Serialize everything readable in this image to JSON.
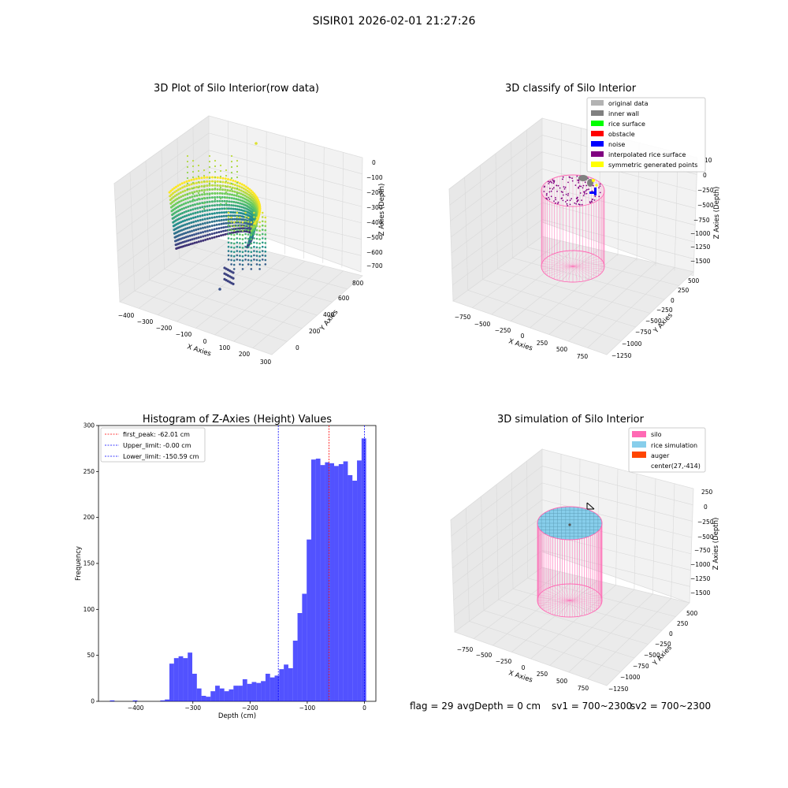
{
  "figure_title": "SISIR01 2026-02-01 21:27:26",
  "status": {
    "flag": "flag = 29",
    "avg_depth": "avgDepth = 0 cm",
    "sv1": "sv1 = 700~2300",
    "sv2": "sv2 = 700~2300"
  },
  "colors": {
    "silo": "#ff69b4",
    "rice_simulation": "#87ceeb",
    "auger": "#ff4500",
    "histogram_bar": "#0000ff",
    "first_peak_line": "#ff0000",
    "upper_limit_line": "#0000ff",
    "lower_limit_line": "#0000ff"
  },
  "chart_data": [
    {
      "type": "scatter3d",
      "title": "3D Plot of Silo Interior(row data)",
      "xlabel": "X Axies",
      "ylabel": "Y Axies",
      "zlabel": "Z Axies (Depth)",
      "x_ticks": [
        "−400",
        "−300",
        "−200",
        "−100",
        "0",
        "100",
        "200",
        "300"
      ],
      "y_ticks": [
        "0",
        "200",
        "400",
        "600",
        "800"
      ],
      "z_ticks": [
        "0",
        "−100",
        "−200",
        "−300",
        "−400",
        "−500",
        "−600",
        "−700"
      ],
      "xlim": [
        -450,
        320
      ],
      "ylim": [
        -100,
        900
      ],
      "zlim": [
        -720,
        20
      ],
      "colormap": "viridis"
    },
    {
      "type": "scatter3d",
      "title": "3D classify of Silo Interior",
      "xlabel": "X Axies",
      "ylabel": "Y Axies",
      "zlabel": "Z Axies (Depth)",
      "x_ticks": [
        "−750",
        "−500",
        "−250",
        "0",
        "250",
        "500",
        "750"
      ],
      "y_ticks": [
        "500",
        "250",
        "0",
        "−250",
        "−500",
        "−750",
        "−1000",
        "−1250"
      ],
      "z_ticks": [
        "0",
        "−250",
        "−500",
        "−750",
        "−1000",
        "−1250",
        "−1500"
      ],
      "z_extra_tick": "10",
      "legend": [
        {
          "label": "original data",
          "color": "#b3b3b3"
        },
        {
          "label": "inner wall",
          "color": "#808080"
        },
        {
          "label": "rice surface",
          "color": "#00ff00"
        },
        {
          "label": "obstacle",
          "color": "#ff0000"
        },
        {
          "label": "noise",
          "color": "#0000ff"
        },
        {
          "label": "interpolated rice surface",
          "color": "#800080"
        },
        {
          "label": "symmetric generated points",
          "color": "#ffff00"
        }
      ],
      "legend_loc": "upper right"
    },
    {
      "type": "bar",
      "title": "Histogram of Z-Axies (Height) Values",
      "xlabel": "Depth (cm)",
      "ylabel": "Frequency",
      "xlim": [
        -465,
        20
      ],
      "ylim": [
        0,
        300
      ],
      "x_ticks": [
        -400,
        -300,
        -200,
        -100,
        0
      ],
      "x_tick_labels": [
        "−400",
        "−300",
        "−200",
        "−100",
        "0"
      ],
      "y_ticks": [
        0,
        50,
        100,
        150,
        200,
        250,
        300
      ],
      "bins": [
        [
          -445,
          -437,
          1
        ],
        [
          -405,
          -397,
          1
        ],
        [
          -357,
          -349,
          1
        ],
        [
          -349,
          -341,
          2
        ],
        [
          -341,
          -333,
          41
        ],
        [
          -333,
          -325,
          47
        ],
        [
          -325,
          -317,
          49
        ],
        [
          -317,
          -309,
          47
        ],
        [
          -309,
          -301,
          53
        ],
        [
          -301,
          -293,
          30
        ],
        [
          -293,
          -285,
          14
        ],
        [
          -285,
          -277,
          6
        ],
        [
          -277,
          -269,
          5
        ],
        [
          -269,
          -261,
          11
        ],
        [
          -261,
          -253,
          17
        ],
        [
          -253,
          -245,
          14
        ],
        [
          -245,
          -237,
          11
        ],
        [
          -237,
          -229,
          13
        ],
        [
          -229,
          -221,
          17
        ],
        [
          -221,
          -213,
          17
        ],
        [
          -213,
          -205,
          24
        ],
        [
          -205,
          -197,
          19
        ],
        [
          -197,
          -189,
          21
        ],
        [
          -189,
          -181,
          20
        ],
        [
          -181,
          -173,
          22
        ],
        [
          -173,
          -165,
          30
        ],
        [
          -165,
          -157,
          26
        ],
        [
          -157,
          -149,
          28
        ],
        [
          -149,
          -141,
          35
        ],
        [
          -141,
          -133,
          40
        ],
        [
          -133,
          -125,
          36
        ],
        [
          -125,
          -117,
          66
        ],
        [
          -117,
          -109,
          96
        ],
        [
          -109,
          -101,
          117
        ],
        [
          -101,
          -93,
          176
        ],
        [
          -93,
          -85,
          263
        ],
        [
          -85,
          -77,
          264
        ],
        [
          -77,
          -69,
          257
        ],
        [
          -69,
          -61,
          260
        ],
        [
          -61,
          -53,
          259
        ],
        [
          -53,
          -45,
          256
        ],
        [
          -45,
          -37,
          258
        ],
        [
          -37,
          -29,
          261
        ],
        [
          -29,
          -21,
          246
        ],
        [
          -21,
          -13,
          240
        ],
        [
          -13,
          -5,
          262
        ],
        [
          -5,
          3,
          286
        ]
      ],
      "vlines": [
        {
          "label": "first_peak: -62.01 cm",
          "x": -62.01,
          "color": "#ff0000"
        },
        {
          "label": "Upper_limit: -0.00 cm",
          "x": -0.0,
          "color": "#0000ff"
        },
        {
          "label": "Lower_limit: -150.59 cm",
          "x": -150.59,
          "color": "#0000ff"
        }
      ],
      "legend_loc": "upper left"
    },
    {
      "type": "surface3d",
      "title": "3D simulation of Silo Interior",
      "xlabel": "X Axies",
      "ylabel": "Y Axies",
      "zlabel": "Z Axies (Depth)",
      "x_ticks": [
        "−750",
        "−500",
        "−250",
        "0",
        "250",
        "500",
        "750"
      ],
      "y_ticks": [
        "500",
        "250",
        "0",
        "−250",
        "−500",
        "−750",
        "−1000",
        "−1250"
      ],
      "z_ticks": [
        "250",
        "0",
        "−250",
        "−500",
        "−750",
        "−1000",
        "−1250",
        "−1500"
      ],
      "legend": [
        {
          "label": "silo",
          "color": "#ff69b4"
        },
        {
          "label": "rice simulation",
          "color": "#87ceeb"
        },
        {
          "label": "auger",
          "color": "#ff4500"
        },
        {
          "label": "center(27,-414)",
          "color": ""
        }
      ],
      "legend_loc": "upper right"
    }
  ]
}
